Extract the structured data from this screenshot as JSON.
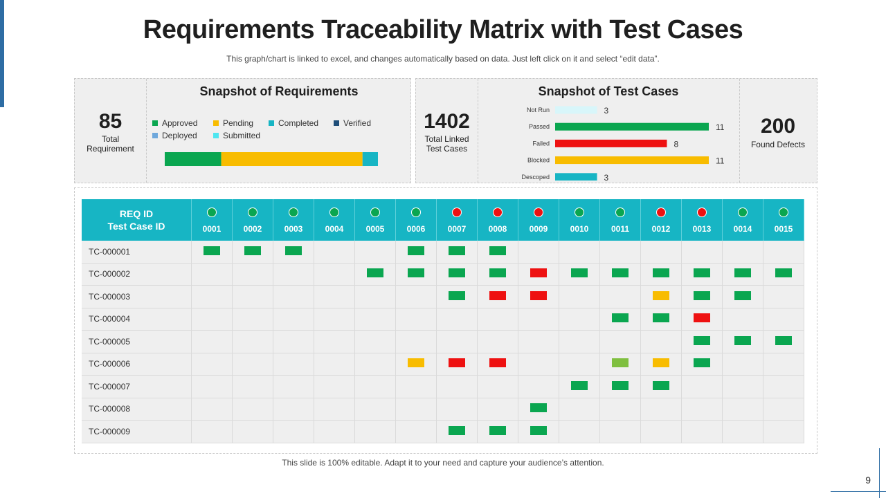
{
  "slide": {
    "title": "Requirements Traceability Matrix with Test Cases",
    "subtitle": "This graph/chart is linked to excel, and changes automatically based on data. Just left click on it and select “edit data”.",
    "footer": "This slide is 100% editable. Adapt it to your need and capture your audience’s attention.",
    "page_number": "9"
  },
  "colors": {
    "approved": "#0aa650",
    "pending": "#f8bc00",
    "completed": "#17b5c4",
    "verified": "#1f4e79",
    "deployed": "#6fa8dc",
    "submitted": "#4ee6f0",
    "failed": "#ee1111",
    "not_run": "#d8f6fa",
    "partial": "#7fbf3f",
    "header": "#17b5c4"
  },
  "requirements_kpi": {
    "value": "85",
    "label_line1": "Total",
    "label_line2": "Requirement"
  },
  "linked_kpi": {
    "value": "1402",
    "label_line1": "Total Linked",
    "label_line2": "Test Cases"
  },
  "defects_kpi": {
    "value": "200",
    "label": "Found Defects"
  },
  "chart_data": [
    {
      "type": "bar",
      "orientation": "horizontal-stacked",
      "title": "Snapshot of Requirements",
      "legend": [
        "Approved",
        "Pending",
        "Completed",
        "Verified",
        "Deployed",
        "Submitted"
      ],
      "series": [
        {
          "name": "Approved",
          "values": [
            22
          ],
          "color": "#0aa650"
        },
        {
          "name": "Pending",
          "values": [
            55
          ],
          "color": "#f8bc00"
        },
        {
          "name": "Completed",
          "values": [
            6
          ],
          "color": "#17b5c4"
        },
        {
          "name": "Verified",
          "values": [
            0
          ],
          "color": "#1f4e79"
        },
        {
          "name": "Deployed",
          "values": [
            0
          ],
          "color": "#6fa8dc"
        },
        {
          "name": "Submitted",
          "values": [
            0
          ],
          "color": "#4ee6f0"
        }
      ]
    },
    {
      "type": "bar",
      "orientation": "horizontal",
      "title": "Snapshot of Test Cases",
      "categories": [
        "Not Run",
        "Passed",
        "Failed",
        "Blocked",
        "Descoped"
      ],
      "values": [
        3,
        11,
        8,
        11,
        3
      ],
      "colors": [
        "#d8f6fa",
        "#0aa650",
        "#ee1111",
        "#f8bc00",
        "#17b5c4"
      ],
      "xlim": [
        0,
        11
      ]
    },
    {
      "type": "table",
      "title": "Traceability Matrix",
      "row_header": "REQ ID",
      "column_header": "Test Case ID",
      "columns": [
        "0001",
        "0002",
        "0003",
        "0004",
        "0005",
        "0006",
        "0007",
        "0008",
        "0009",
        "0010",
        "0011",
        "0012",
        "0013",
        "0014",
        "0015"
      ],
      "column_status": [
        "pass",
        "pass",
        "pass",
        "pass",
        "pass",
        "pass",
        "fail",
        "fail",
        "fail",
        "pass",
        "pass",
        "fail",
        "fail",
        "pass",
        "pass"
      ],
      "rows": [
        {
          "id": "TC-000001",
          "cells": [
            "G",
            "G",
            "G",
            "",
            "",
            "G",
            "G",
            "G",
            "",
            "",
            "",
            "",
            "",
            "",
            ""
          ]
        },
        {
          "id": "TC-000002",
          "cells": [
            "",
            "",
            "",
            "",
            "G",
            "G",
            "G",
            "G",
            "R",
            "G",
            "G",
            "G",
            "G",
            "G",
            "G"
          ]
        },
        {
          "id": "TC-000003",
          "cells": [
            "",
            "",
            "",
            "",
            "",
            "",
            "G",
            "R",
            "R",
            "",
            "",
            "Y",
            "G",
            "G",
            ""
          ]
        },
        {
          "id": "TC-000004",
          "cells": [
            "",
            "",
            "",
            "",
            "",
            "",
            "",
            "",
            "",
            "",
            "G",
            "G",
            "R",
            "",
            ""
          ]
        },
        {
          "id": "TC-000005",
          "cells": [
            "",
            "",
            "",
            "",
            "",
            "",
            "",
            "",
            "",
            "",
            "",
            "",
            "G",
            "G",
            "G"
          ]
        },
        {
          "id": "TC-000006",
          "cells": [
            "",
            "",
            "",
            "",
            "",
            "Y",
            "R",
            "R",
            "",
            "",
            "L",
            "Y",
            "G",
            "",
            ""
          ]
        },
        {
          "id": "TC-000007",
          "cells": [
            "",
            "",
            "",
            "",
            "",
            "",
            "",
            "",
            "",
            "G",
            "G",
            "G",
            "",
            "",
            ""
          ]
        },
        {
          "id": "TC-000008",
          "cells": [
            "",
            "",
            "",
            "",
            "",
            "",
            "",
            "",
            "G",
            "",
            "",
            "",
            "",
            "",
            ""
          ]
        },
        {
          "id": "TC-000009",
          "cells": [
            "",
            "",
            "",
            "",
            "",
            "",
            "G",
            "G",
            "G",
            "",
            "",
            "",
            "",
            "",
            ""
          ]
        }
      ],
      "legend_codes": {
        "G": "passed",
        "R": "failed",
        "Y": "blocked",
        "L": "partial"
      }
    }
  ]
}
